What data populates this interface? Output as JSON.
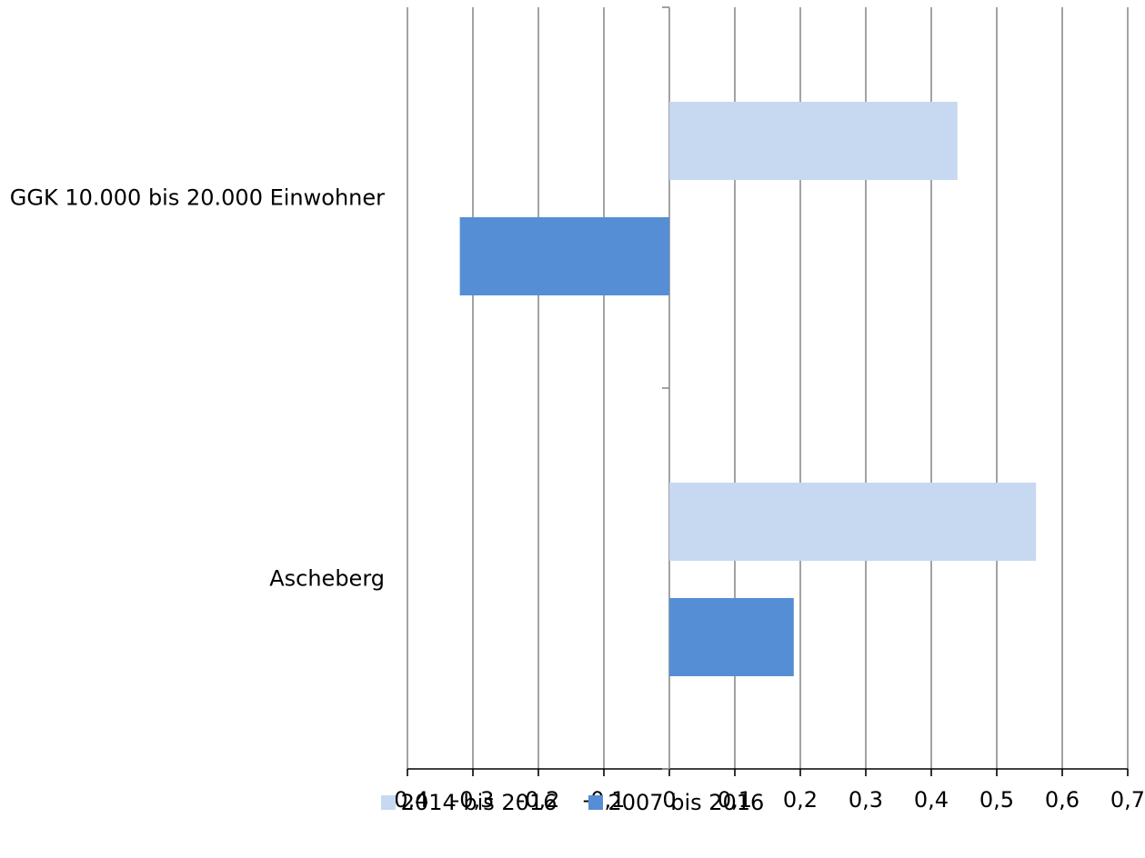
{
  "chart_data": {
    "type": "bar",
    "orientation": "horizontal",
    "categories": [
      "GGK 10.000 bis 20.000 Einwohner",
      "Ascheberg"
    ],
    "series": [
      {
        "name": "2014 bis 2016",
        "color": "#c6d9f1",
        "values": [
          0.44,
          0.56
        ]
      },
      {
        "name": "2007 bis 2016",
        "color": "#558ed5",
        "values": [
          -0.32,
          0.19
        ]
      }
    ],
    "xlim": [
      -0.4,
      0.7
    ],
    "xticks": [
      "-0,4",
      "-0,3",
      "-0,2",
      "-0,1",
      "0",
      "0,1",
      "0,2",
      "0,3",
      "0,4",
      "0,5",
      "0,6",
      "0,7"
    ],
    "grid": true,
    "legend_position": "bottom"
  }
}
